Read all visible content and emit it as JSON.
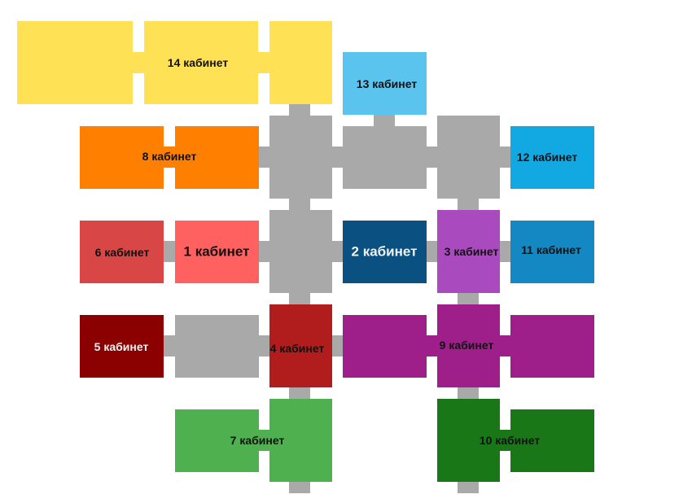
{
  "colors": {
    "corridor": "#a9a9a9",
    "cab14": "#ffe156",
    "cab13": "#5bc4ee",
    "cab12": "#12a8e2",
    "cab11": "#1488c2",
    "cab8": "#ff8000",
    "cab6": "#d94646",
    "cab1": "#ff6060",
    "cab2": "#0a5080",
    "cab3": "#a94bbf",
    "cab5": "#8b0000",
    "cab4": "#b11c1c",
    "cab9": "#9e1f8a",
    "cab7": "#4fb04f",
    "cab10": "#1a7718"
  },
  "rooms": {
    "r14": "14 кабинет",
    "r13": "13 кабинет",
    "r8": "8 кабинет",
    "r12": "12 кабинет",
    "r6": "6 кабинет",
    "r1": "1 кабинет",
    "r2": "2 кабинет",
    "r3": "3 кабинет",
    "r11": "11 кабинет",
    "r5": "5 кабинет",
    "r4": "4 кабинет",
    "r9": "9 кабинет",
    "r7": "7 кабинет",
    "r10": "10 кабинет"
  }
}
